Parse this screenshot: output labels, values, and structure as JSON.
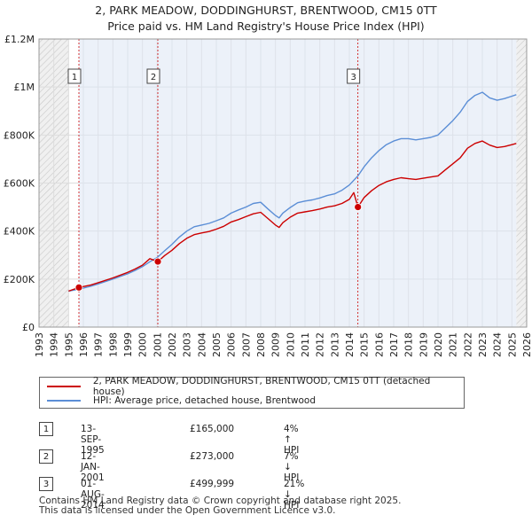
{
  "chart_data": {
    "type": "line",
    "title": "2, PARK MEADOW, DODDINGHURST, BRENTWOOD, CM15 0TT",
    "subtitle": "Price paid vs. HM Land Registry's House Price Index (HPI)",
    "xlim": [
      1993,
      2026
    ],
    "ylim": [
      0,
      1200000
    ],
    "x_ticks": [
      "1993",
      "1994",
      "1995",
      "1996",
      "1997",
      "1998",
      "1999",
      "2000",
      "2001",
      "2002",
      "2003",
      "2004",
      "2005",
      "2006",
      "2007",
      "2008",
      "2009",
      "2010",
      "2011",
      "2012",
      "2013",
      "2014",
      "2015",
      "2016",
      "2017",
      "2018",
      "2019",
      "2020",
      "2021",
      "2022",
      "2023",
      "2024",
      "2025",
      "2026"
    ],
    "y_ticks": [
      {
        "value": 0,
        "label": "£0"
      },
      {
        "value": 200000,
        "label": "£200K"
      },
      {
        "value": 400000,
        "label": "£400K"
      },
      {
        "value": 600000,
        "label": "£600K"
      },
      {
        "value": 800000,
        "label": "£800K"
      },
      {
        "value": 1000000,
        "label": "£1M"
      },
      {
        "value": 1200000,
        "label": "£1.2M"
      }
    ],
    "data_range": [
      1995.0,
      2025.3
    ],
    "series": [
      {
        "name": "2, PARK MEADOW, DODDINGHURST, BRENTWOOD, CM15 0TT (detached house)",
        "color": "#cc0000",
        "x": [
          1995.0,
          1995.7,
          1996.5,
          1997.0,
          1998.0,
          1999.0,
          1999.5,
          2000.0,
          2000.5,
          2001.04,
          2001.5,
          2002.0,
          2002.5,
          2003.0,
          2003.5,
          2004.0,
          2004.5,
          2005.0,
          2005.5,
          2006.0,
          2006.5,
          2007.0,
          2007.5,
          2008.0,
          2008.5,
          2009.0,
          2009.25,
          2009.5,
          2010.0,
          2010.5,
          2011.0,
          2011.5,
          2012.0,
          2012.5,
          2013.0,
          2013.5,
          2014.0,
          2014.3,
          2014.58,
          2015.0,
          2015.5,
          2016.0,
          2016.5,
          2017.0,
          2017.5,
          2018.0,
          2018.5,
          2019.0,
          2019.5,
          2020.0,
          2020.5,
          2021.0,
          2021.5,
          2022.0,
          2022.5,
          2023.0,
          2023.5,
          2024.0,
          2024.5,
          2025.0,
          2025.3
        ],
        "y": [
          150000,
          165000,
          175000,
          185000,
          205000,
          228000,
          242000,
          258000,
          285000,
          273000,
          298000,
          320000,
          348000,
          370000,
          385000,
          392000,
          398000,
          408000,
          420000,
          438000,
          448000,
          460000,
          472000,
          478000,
          452000,
          425000,
          415000,
          435000,
          458000,
          475000,
          480000,
          485000,
          492000,
          500000,
          505000,
          515000,
          532000,
          560000,
          499999,
          540000,
          568000,
          590000,
          605000,
          615000,
          622000,
          618000,
          615000,
          620000,
          625000,
          630000,
          655000,
          680000,
          705000,
          745000,
          765000,
          775000,
          758000,
          748000,
          752000,
          760000,
          765000
        ]
      },
      {
        "name": "HPI: Average price, detached house, Brentwood",
        "color": "#5b8ed6",
        "x": [
          1995.0,
          1995.7,
          1996.5,
          1997.0,
          1998.0,
          1999.0,
          1999.5,
          2000.0,
          2000.5,
          2001.0,
          2001.5,
          2002.0,
          2002.5,
          2003.0,
          2003.5,
          2004.0,
          2004.5,
          2005.0,
          2005.5,
          2006.0,
          2006.5,
          2007.0,
          2007.5,
          2008.0,
          2008.5,
          2009.0,
          2009.25,
          2009.5,
          2010.0,
          2010.5,
          2011.0,
          2011.5,
          2012.0,
          2012.5,
          2013.0,
          2013.5,
          2014.0,
          2014.58,
          2015.0,
          2015.5,
          2016.0,
          2016.5,
          2017.0,
          2017.5,
          2018.0,
          2018.5,
          2019.0,
          2019.5,
          2020.0,
          2020.5,
          2021.0,
          2021.5,
          2022.0,
          2022.5,
          2023.0,
          2023.5,
          2024.0,
          2024.5,
          2025.0,
          2025.3
        ],
        "y": [
          150000,
          158000,
          170000,
          180000,
          200000,
          222000,
          236000,
          252000,
          272000,
          290000,
          318000,
          345000,
          375000,
          400000,
          418000,
          425000,
          432000,
          443000,
          455000,
          475000,
          488000,
          500000,
          515000,
          520000,
          492000,
          465000,
          455000,
          475000,
          498000,
          518000,
          525000,
          530000,
          538000,
          548000,
          555000,
          570000,
          592000,
          630000,
          668000,
          705000,
          735000,
          760000,
          775000,
          785000,
          785000,
          780000,
          785000,
          790000,
          800000,
          830000,
          860000,
          895000,
          940000,
          965000,
          978000,
          955000,
          945000,
          952000,
          962000,
          968000
        ]
      }
    ],
    "sales": [
      {
        "num": "1",
        "x": 1995.7,
        "y": 165000,
        "date": "13-SEP-1995",
        "price": "£165,000",
        "hpi": "4% ↑ HPI"
      },
      {
        "num": "2",
        "x": 2001.04,
        "y": 273000,
        "date": "12-JAN-2001",
        "price": "£273,000",
        "hpi": "7% ↓ HPI"
      },
      {
        "num": "3",
        "x": 2014.58,
        "y": 499999,
        "date": "01-AUG-2014",
        "price": "£499,999",
        "hpi": "21% ↓ HPI"
      }
    ],
    "grid": true,
    "legend_position": "below"
  },
  "footer": {
    "line1": "Contains HM Land Registry data © Crown copyright and database right 2025.",
    "line2": "This data is licensed under the Open Government Licence v3.0."
  },
  "colors": {
    "price_line": "#cc0000",
    "hpi_line": "#5b8ed6",
    "sale_band": "#dde6f4",
    "grid": "#dddddd"
  }
}
